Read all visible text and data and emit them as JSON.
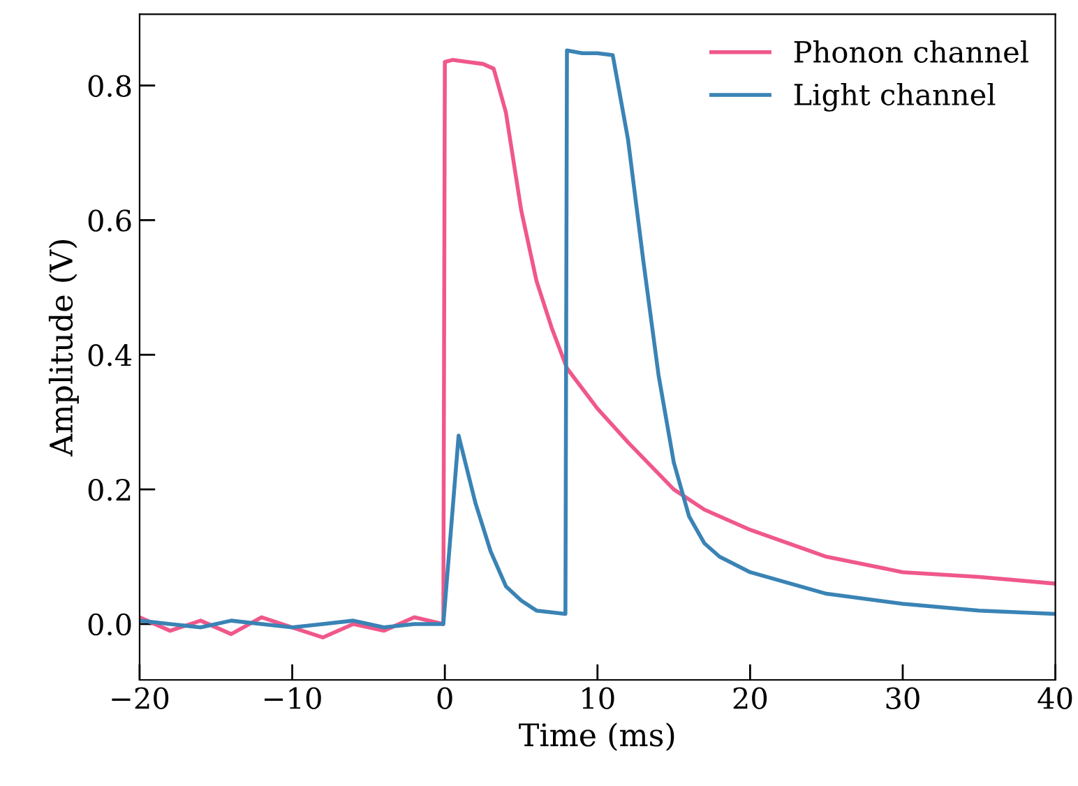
{
  "chart_data": {
    "type": "line",
    "xlabel": "Time (ms)",
    "ylabel": "Amplitude (V)",
    "xlim": [
      -20,
      40
    ],
    "ylim": [
      -0.083,
      0.906
    ],
    "xticks": [
      {
        "value": -20,
        "label": "−20"
      },
      {
        "value": -10,
        "label": "−10"
      },
      0,
      10,
      20,
      30,
      40
    ],
    "yticks": [
      {
        "value": 0,
        "label": "0.0"
      },
      {
        "value": 0.2,
        "label": "0.2"
      },
      {
        "value": 0.4,
        "label": "0.4"
      },
      {
        "value": 0.6,
        "label": "0.6"
      },
      {
        "value": 0.8,
        "label": "0.8"
      }
    ],
    "grid": false,
    "legend": "top right",
    "line_style": "solid",
    "marker": "none",
    "series": [
      {
        "name": "Phonon channel",
        "color": "#f0588a",
        "x": [
          -20,
          -18,
          -16,
          -14,
          -12,
          -10,
          -8,
          -6,
          -4,
          -2,
          -0.1,
          0.0,
          0.5,
          1.5,
          2.5,
          3.2,
          4,
          5,
          6,
          7,
          8,
          10,
          12,
          15,
          17,
          20,
          25,
          30,
          35,
          40
        ],
        "values": [
          0.01,
          -0.01,
          0.005,
          -0.015,
          0.01,
          -0.005,
          -0.02,
          0.0,
          -0.01,
          0.01,
          0.0,
          0.835,
          0.838,
          0.835,
          0.832,
          0.825,
          0.76,
          0.615,
          0.51,
          0.44,
          0.38,
          0.32,
          0.27,
          0.2,
          0.17,
          0.14,
          0.1,
          0.077,
          0.07,
          0.06
        ]
      },
      {
        "name": "Light channel",
        "color": "#3a83b5",
        "x": [
          -20,
          -18,
          -16,
          -14,
          -12,
          -10,
          -8,
          -6,
          -4,
          -2,
          -0.1,
          0.9,
          2,
          3,
          4,
          5,
          6,
          7.9,
          8.0,
          9,
          10,
          11,
          12,
          13,
          14,
          15,
          16,
          17,
          18,
          20,
          25,
          30,
          35,
          40
        ],
        "values": [
          0.005,
          0.0,
          -0.005,
          0.005,
          0.0,
          -0.005,
          0.0,
          0.005,
          -0.005,
          0.0,
          0.0,
          0.28,
          0.18,
          0.108,
          0.056,
          0.035,
          0.02,
          0.015,
          0.852,
          0.848,
          0.848,
          0.845,
          0.72,
          0.54,
          0.37,
          0.24,
          0.16,
          0.12,
          0.1,
          0.077,
          0.045,
          0.03,
          0.02,
          0.015
        ]
      }
    ]
  }
}
